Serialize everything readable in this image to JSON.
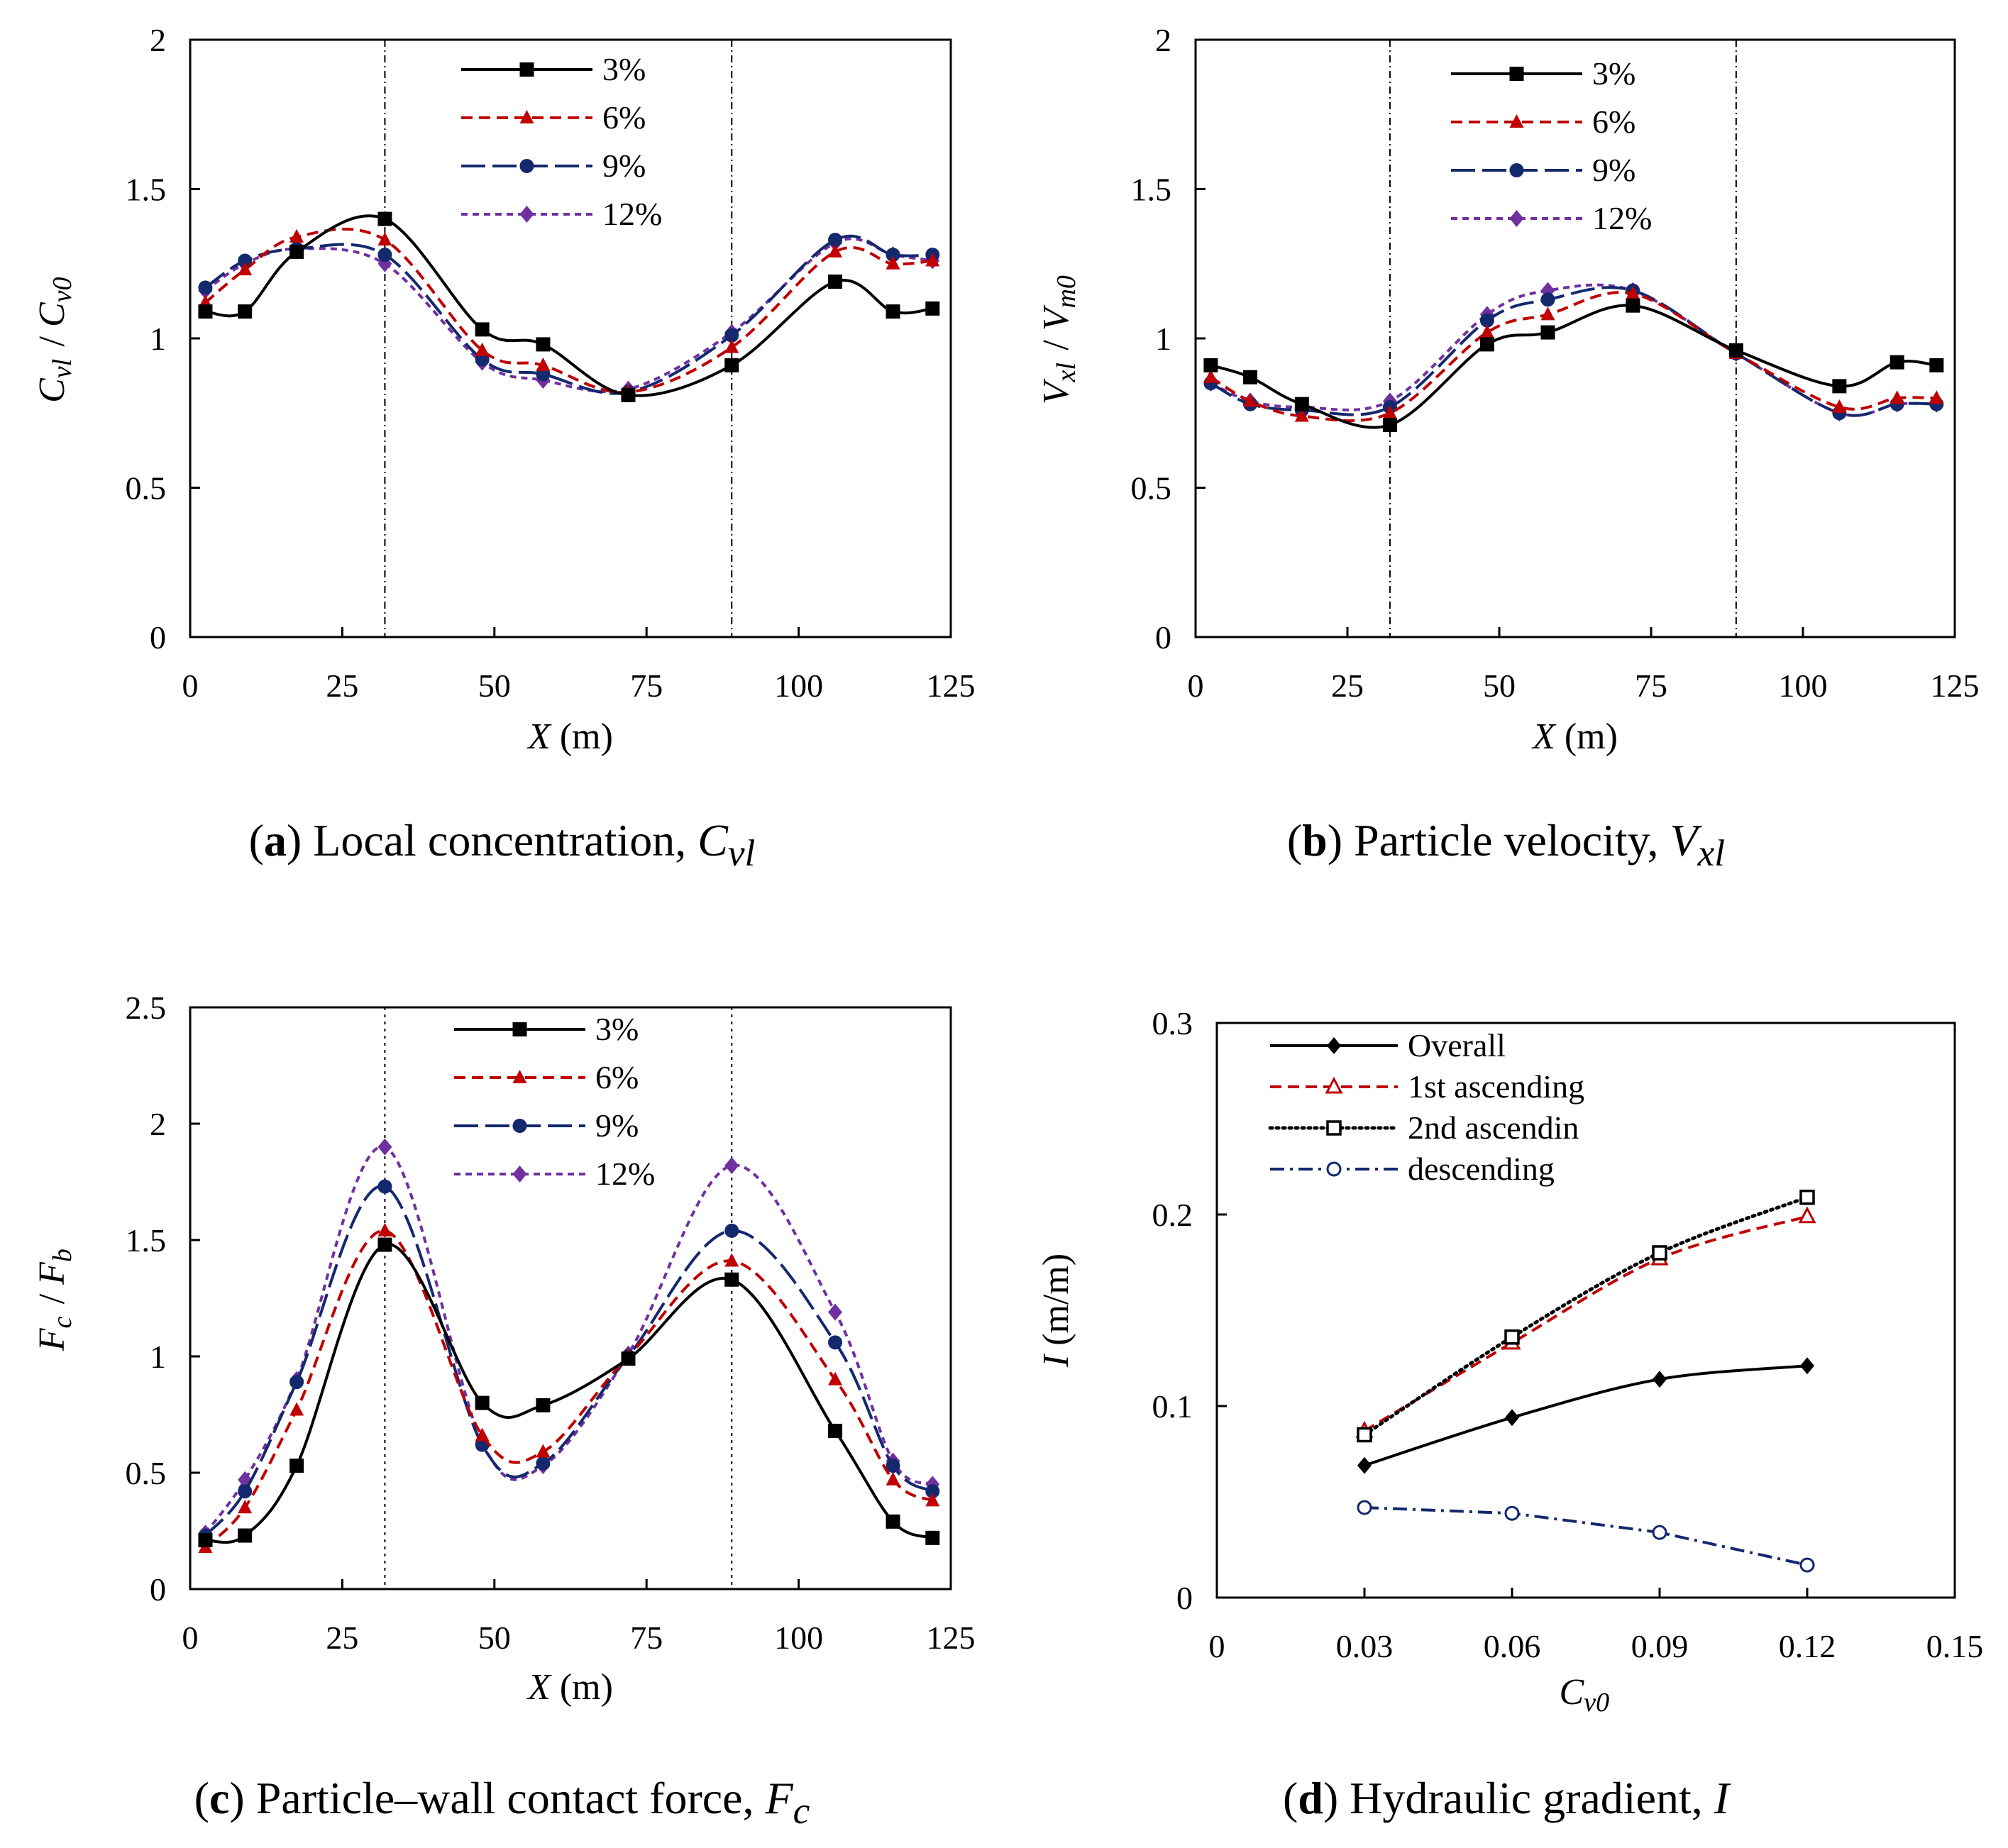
{
  "chart_data": [
    {
      "id": "a",
      "type": "line",
      "caption": {
        "letter": "a",
        "text": "Local concentration,",
        "symbol": "C",
        "sub": "vl"
      },
      "xlabel": {
        "main": "X",
        "unit": "(m)"
      },
      "ylabel": {
        "left": "C",
        "left_sub": "vl",
        "sep": "/",
        "right": "C",
        "right_sub": "v0"
      },
      "xlim": [
        0,
        125
      ],
      "ylim": [
        0,
        2
      ],
      "xticks": [
        "0",
        "25",
        "50",
        "75",
        "100",
        "125"
      ],
      "yticks": [
        "0",
        "0.5",
        "1",
        "1.5",
        "2"
      ],
      "vlines": [
        32,
        89
      ],
      "legend_position": "top-center",
      "series": [
        {
          "name": "12%",
          "color": "#7030a0",
          "dash": "9,7",
          "marker": "diamond",
          "x": [
            2.5,
            9,
            17.5,
            32,
            48,
            58,
            72,
            89,
            106,
            115.5,
            122
          ],
          "y": [
            1.16,
            1.25,
            1.3,
            1.25,
            0.92,
            0.86,
            0.83,
            1.02,
            1.32,
            1.28,
            1.26
          ]
        },
        {
          "name": "9%",
          "color": "#14286e",
          "dash": "34,10",
          "marker": "circle",
          "x": [
            2.5,
            9,
            17.5,
            32,
            48,
            58,
            72,
            89,
            106,
            115.5,
            122
          ],
          "y": [
            1.17,
            1.26,
            1.3,
            1.28,
            0.93,
            0.88,
            0.82,
            1.01,
            1.33,
            1.28,
            1.28
          ]
        },
        {
          "name": "6%",
          "color": "#c00000",
          "dash": "16,9",
          "marker": "triangle",
          "x": [
            2.5,
            9,
            17.5,
            32,
            48,
            58,
            72,
            89,
            106,
            115.5,
            122
          ],
          "y": [
            1.12,
            1.23,
            1.34,
            1.33,
            0.96,
            0.91,
            0.82,
            0.97,
            1.29,
            1.25,
            1.26
          ]
        },
        {
          "name": "3%",
          "color": "#000000",
          "dash": "",
          "marker": "square",
          "x": [
            2.5,
            9,
            17.5,
            32,
            48,
            58,
            72,
            89,
            106,
            115.5,
            122
          ],
          "y": [
            1.09,
            1.09,
            1.29,
            1.4,
            1.03,
            0.98,
            0.81,
            0.91,
            1.19,
            1.09,
            1.1
          ]
        }
      ]
    },
    {
      "id": "b",
      "type": "line",
      "caption": {
        "letter": "b",
        "text": "Particle velocity,",
        "symbol": "V",
        "sub": "xl"
      },
      "xlabel": {
        "main": "X",
        "unit": "(m)"
      },
      "ylabel": {
        "left": "V",
        "left_sub": "xl",
        "sep": "/",
        "right": "V",
        "right_sub": "m0"
      },
      "xlim": [
        0,
        125
      ],
      "ylim": [
        0,
        2
      ],
      "xticks": [
        "0",
        "25",
        "50",
        "75",
        "100",
        "125"
      ],
      "yticks": [
        "0",
        "0.5",
        "1",
        "1.5",
        "2"
      ],
      "vlines": [
        32,
        89
      ],
      "legend_position": "top-center",
      "series": [
        {
          "name": "12%",
          "color": "#7030a0",
          "dash": "9,7",
          "marker": "diamond",
          "x": [
            2.5,
            9,
            17.5,
            32,
            48,
            58,
            72,
            89,
            106,
            115.5,
            122
          ],
          "y": [
            0.85,
            0.79,
            0.77,
            0.79,
            1.08,
            1.16,
            1.16,
            0.95,
            0.75,
            0.78,
            0.78
          ]
        },
        {
          "name": "9%",
          "color": "#14286e",
          "dash": "34,10",
          "marker": "circle",
          "x": [
            2.5,
            9,
            17.5,
            32,
            48,
            58,
            72,
            89,
            106,
            115.5,
            122
          ],
          "y": [
            0.85,
            0.78,
            0.76,
            0.77,
            1.06,
            1.13,
            1.16,
            0.95,
            0.75,
            0.78,
            0.78
          ]
        },
        {
          "name": "6%",
          "color": "#c00000",
          "dash": "16,9",
          "marker": "triangle",
          "x": [
            2.5,
            9,
            17.5,
            32,
            48,
            58,
            72,
            89,
            106,
            115.5,
            122
          ],
          "y": [
            0.87,
            0.79,
            0.74,
            0.75,
            1.02,
            1.08,
            1.15,
            0.95,
            0.77,
            0.8,
            0.8
          ]
        },
        {
          "name": "3%",
          "color": "#000000",
          "dash": "",
          "marker": "square",
          "x": [
            2.5,
            9,
            17.5,
            32,
            48,
            58,
            72,
            89,
            106,
            115.5,
            122
          ],
          "y": [
            0.91,
            0.87,
            0.78,
            0.71,
            0.98,
            1.02,
            1.11,
            0.96,
            0.84,
            0.92,
            0.91
          ]
        }
      ]
    },
    {
      "id": "c",
      "type": "line",
      "caption": {
        "letter": "c",
        "text": "Particle–wall contact force,",
        "symbol": "F",
        "sub": "c"
      },
      "xlabel": {
        "main": "X",
        "unit": "(m)"
      },
      "ylabel": {
        "left": "F",
        "left_sub": "c",
        "sep": "/",
        "right": "F",
        "right_sub": "b"
      },
      "xlim": [
        0,
        125
      ],
      "ylim": [
        0,
        2.5
      ],
      "xticks": [
        "0",
        "25",
        "50",
        "75",
        "100",
        "125"
      ],
      "yticks": [
        "0",
        "0.5",
        "1",
        "1.5",
        "2",
        "2.5"
      ],
      "vlines": [
        32,
        89
      ],
      "legend_position": "top-center",
      "series": [
        {
          "name": "12%",
          "color": "#7030a0",
          "dash": "9,7",
          "marker": "diamond",
          "x": [
            2.5,
            9,
            17.5,
            32,
            48,
            58,
            72,
            89,
            106,
            115.5,
            122
          ],
          "y": [
            0.24,
            0.47,
            0.9,
            1.9,
            0.63,
            0.53,
            1.01,
            1.82,
            1.19,
            0.55,
            0.45
          ]
        },
        {
          "name": "9%",
          "color": "#14286e",
          "dash": "34,10",
          "marker": "circle",
          "x": [
            2.5,
            9,
            17.5,
            32,
            48,
            58,
            72,
            89,
            106,
            115.5,
            122
          ],
          "y": [
            0.23,
            0.42,
            0.89,
            1.73,
            0.62,
            0.54,
            1.0,
            1.54,
            1.06,
            0.53,
            0.42
          ]
        },
        {
          "name": "6%",
          "color": "#c00000",
          "dash": "16,9",
          "marker": "triangle",
          "x": [
            2.5,
            9,
            17.5,
            32,
            48,
            58,
            72,
            89,
            106,
            115.5,
            122
          ],
          "y": [
            0.18,
            0.35,
            0.77,
            1.54,
            0.66,
            0.59,
            1.0,
            1.41,
            0.9,
            0.47,
            0.38
          ]
        },
        {
          "name": "3%",
          "color": "#000000",
          "dash": "",
          "marker": "square",
          "x": [
            2.5,
            9,
            17.5,
            32,
            48,
            58,
            72,
            89,
            106,
            115.5,
            122
          ],
          "y": [
            0.21,
            0.23,
            0.53,
            1.48,
            0.8,
            0.79,
            0.99,
            1.33,
            0.68,
            0.29,
            0.22
          ]
        }
      ]
    },
    {
      "id": "d",
      "type": "line",
      "caption": {
        "letter": "d",
        "text": "Hydraulic gradient,",
        "symbol": "I",
        "sub": ""
      },
      "xlabel": {
        "main": "C",
        "main_sub": "v0",
        "unit": ""
      },
      "ylabel": {
        "left": "I",
        "left_sub": "",
        "sep": "",
        "right": "(m/m)",
        "right_sub": ""
      },
      "xlim": [
        0,
        0.15
      ],
      "ylim": [
        0,
        0.3
      ],
      "xticks": [
        "0",
        "0.03",
        "0.06",
        "0.09",
        "0.12",
        "0.15"
      ],
      "yticks": [
        "0",
        "0.1",
        "0.2",
        "0.3"
      ],
      "vlines": [],
      "legend_position": "top-left",
      "series": [
        {
          "name": "Overall",
          "color": "#000000",
          "dash": "",
          "marker": "diamond",
          "x": [
            0.03,
            0.06,
            0.09,
            0.12
          ],
          "y": [
            0.069,
            0.094,
            0.114,
            0.121
          ]
        },
        {
          "name": "1st ascending",
          "color": "#c00000",
          "dash": "16,9",
          "marker": "triangle-open",
          "x": [
            0.03,
            0.06,
            0.09,
            0.12
          ],
          "y": [
            0.087,
            0.133,
            0.177,
            0.199
          ]
        },
        {
          "name": "2nd ascendin",
          "color": "#000000",
          "dash": "3,6",
          "marker": "square-open",
          "x": [
            0.03,
            0.06,
            0.09,
            0.12
          ],
          "y": [
            0.085,
            0.136,
            0.18,
            0.209
          ]
        },
        {
          "name": "descending",
          "color": "#14286e",
          "dash": "20,8,4,8",
          "marker": "circle-open",
          "x": [
            0.03,
            0.06,
            0.09,
            0.12
          ],
          "y": [
            0.047,
            0.044,
            0.034,
            0.017
          ]
        }
      ]
    }
  ]
}
